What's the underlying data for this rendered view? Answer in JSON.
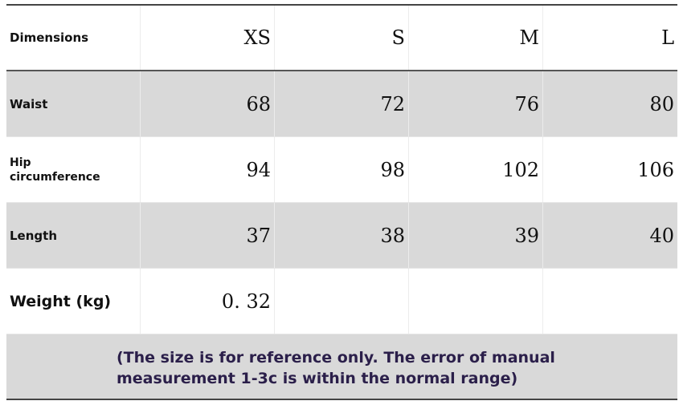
{
  "table": {
    "header": {
      "label": "Dimensions",
      "sizes": [
        "XS",
        "S",
        "M",
        "L"
      ]
    },
    "rows": [
      {
        "label": "Waist",
        "values": [
          68,
          72,
          76,
          80
        ]
      },
      {
        "label": "Hip circumference",
        "values": [
          94,
          98,
          102,
          106
        ]
      },
      {
        "label": "Length",
        "values": [
          37,
          38,
          39,
          40
        ]
      },
      {
        "label": "Weight (kg)",
        "values": [
          "0. 32"
        ]
      }
    ],
    "note": "(The size is for reference only. The error of manual measurement 1-3c is within the normal range)"
  }
}
